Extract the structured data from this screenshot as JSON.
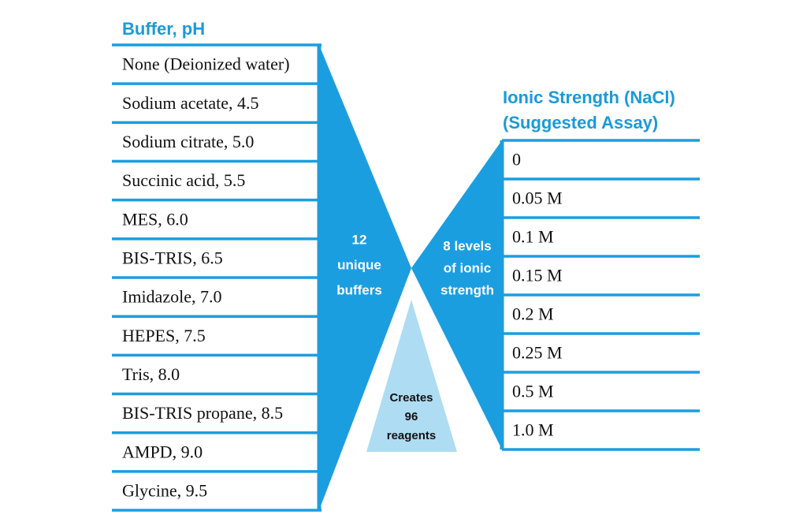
{
  "buffer": {
    "title": "Buffer, pH",
    "items": [
      "None (Deionized water)",
      "Sodium acetate, 4.5",
      "Sodium citrate, 5.0",
      "Succinic acid, 5.5",
      "MES, 6.0",
      "BIS-TRIS, 6.5",
      "Imidazole, 7.0",
      "HEPES, 7.5",
      "Tris, 8.0",
      "BIS-TRIS propane, 8.5",
      "AMPD, 9.0",
      "Glycine, 9.5"
    ]
  },
  "ionic": {
    "title": [
      "Ionic Strength (NaCl)",
      "(Suggested Assay)"
    ],
    "items": [
      "0",
      "0.05 M",
      "0.1 M",
      "0.15 M",
      "0.2 M",
      "0.25 M",
      "0.5 M",
      "1.0 M"
    ]
  },
  "buffer_label": [
    "12",
    "unique",
    "buffers"
  ],
  "ionic_label": [
    "8 levels",
    "of ionic",
    "strength"
  ],
  "result_label": [
    "Creates",
    "96",
    "reagents"
  ]
}
